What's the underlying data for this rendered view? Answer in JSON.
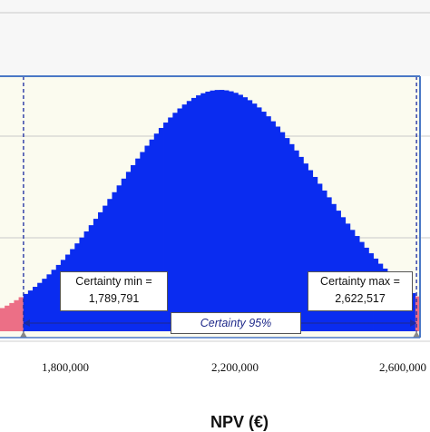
{
  "chart_data": {
    "type": "bar",
    "title": "",
    "xlabel": "NPV (€)",
    "ylabel": "",
    "xlim": [
      1740000,
      2630000
    ],
    "x_ticks": [
      "1,800,000",
      "2,200,000",
      "2,600,000"
    ],
    "grid": true,
    "distribution": {
      "mean": 2206000,
      "std": 213000
    },
    "certainty": {
      "label": "Certainty 95%",
      "min_label": "Certainty min =",
      "min_value": "1,789,791",
      "max_label": "Certainty max =",
      "max_value": "2,622,517",
      "min": 1789791,
      "max": 2622517
    }
  },
  "colors": {
    "in_range": "#0a2cf0",
    "out_range": "#ec6f86",
    "plot_bg": "#fbfbef",
    "frame": "#4a78c6",
    "grid": "#c8c8c8",
    "marker_line": "#1a2aa0"
  }
}
